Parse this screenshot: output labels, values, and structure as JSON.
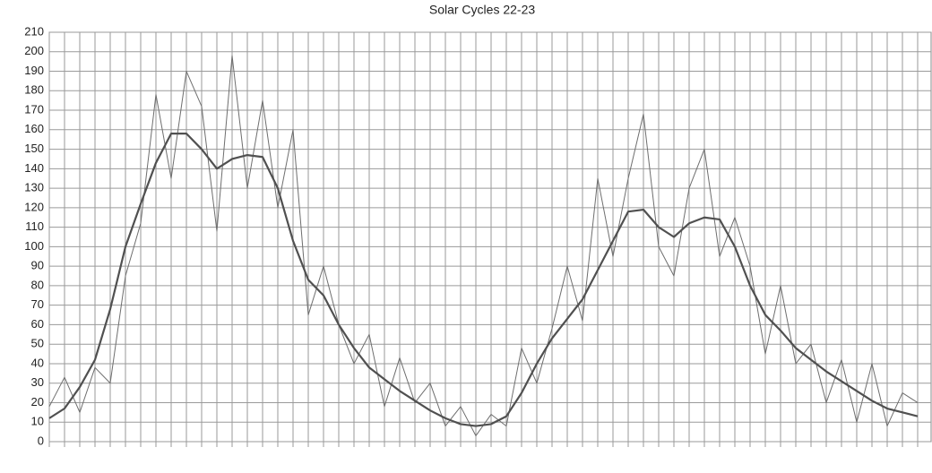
{
  "chart_data": {
    "type": "line",
    "title": "Solar Cycles 22-23",
    "categories": [
      null,
      null,
      null,
      null,
      null,
      null,
      null,
      null,
      null,
      null,
      null,
      null,
      null,
      null,
      null,
      null,
      null,
      null,
      null,
      null,
      null,
      null,
      null,
      null,
      null,
      null,
      null,
      null,
      null,
      null,
      null,
      null,
      null,
      null,
      null,
      null,
      null,
      null,
      null,
      null,
      null,
      null,
      null,
      null,
      null,
      null,
      null,
      null,
      null,
      null,
      null,
      null,
      null,
      null,
      null,
      null,
      null,
      null
    ],
    "series": [
      {
        "color": "#6e6e6e",
        "width": 1,
        "values": [
          18,
          33,
          15,
          38,
          30,
          85,
          112,
          178,
          135,
          190,
          172,
          108,
          198,
          130,
          175,
          120,
          160,
          65,
          90,
          60,
          40,
          55,
          18,
          43,
          20,
          30,
          8,
          18,
          3,
          14,
          8,
          48,
          30,
          58,
          90,
          62,
          135,
          95,
          135,
          168,
          100,
          85,
          130,
          150,
          95,
          115,
          90,
          45,
          80,
          40,
          50,
          20,
          42,
          10,
          40,
          8,
          25,
          20
        ]
      },
      {
        "color": "#505050",
        "width": 2.2,
        "values": [
          12,
          17,
          28,
          42,
          68,
          100,
          122,
          143,
          158,
          158,
          150,
          140,
          145,
          147,
          146,
          130,
          103,
          83,
          75,
          60,
          48,
          38,
          32,
          26,
          21,
          16,
          12,
          9,
          8,
          9,
          13,
          25,
          40,
          53,
          63,
          73,
          88,
          103,
          118,
          119,
          110,
          105,
          112,
          115,
          114,
          100,
          80,
          65,
          57,
          48,
          42,
          36,
          31,
          26,
          21,
          17,
          15,
          13
        ]
      }
    ],
    "ylim": [
      0,
      210
    ],
    "yticks": [
      0,
      10,
      20,
      30,
      40,
      50,
      60,
      70,
      80,
      90,
      100,
      110,
      120,
      130,
      140,
      150,
      160,
      170,
      180,
      190,
      200,
      210
    ],
    "grid": true
  }
}
